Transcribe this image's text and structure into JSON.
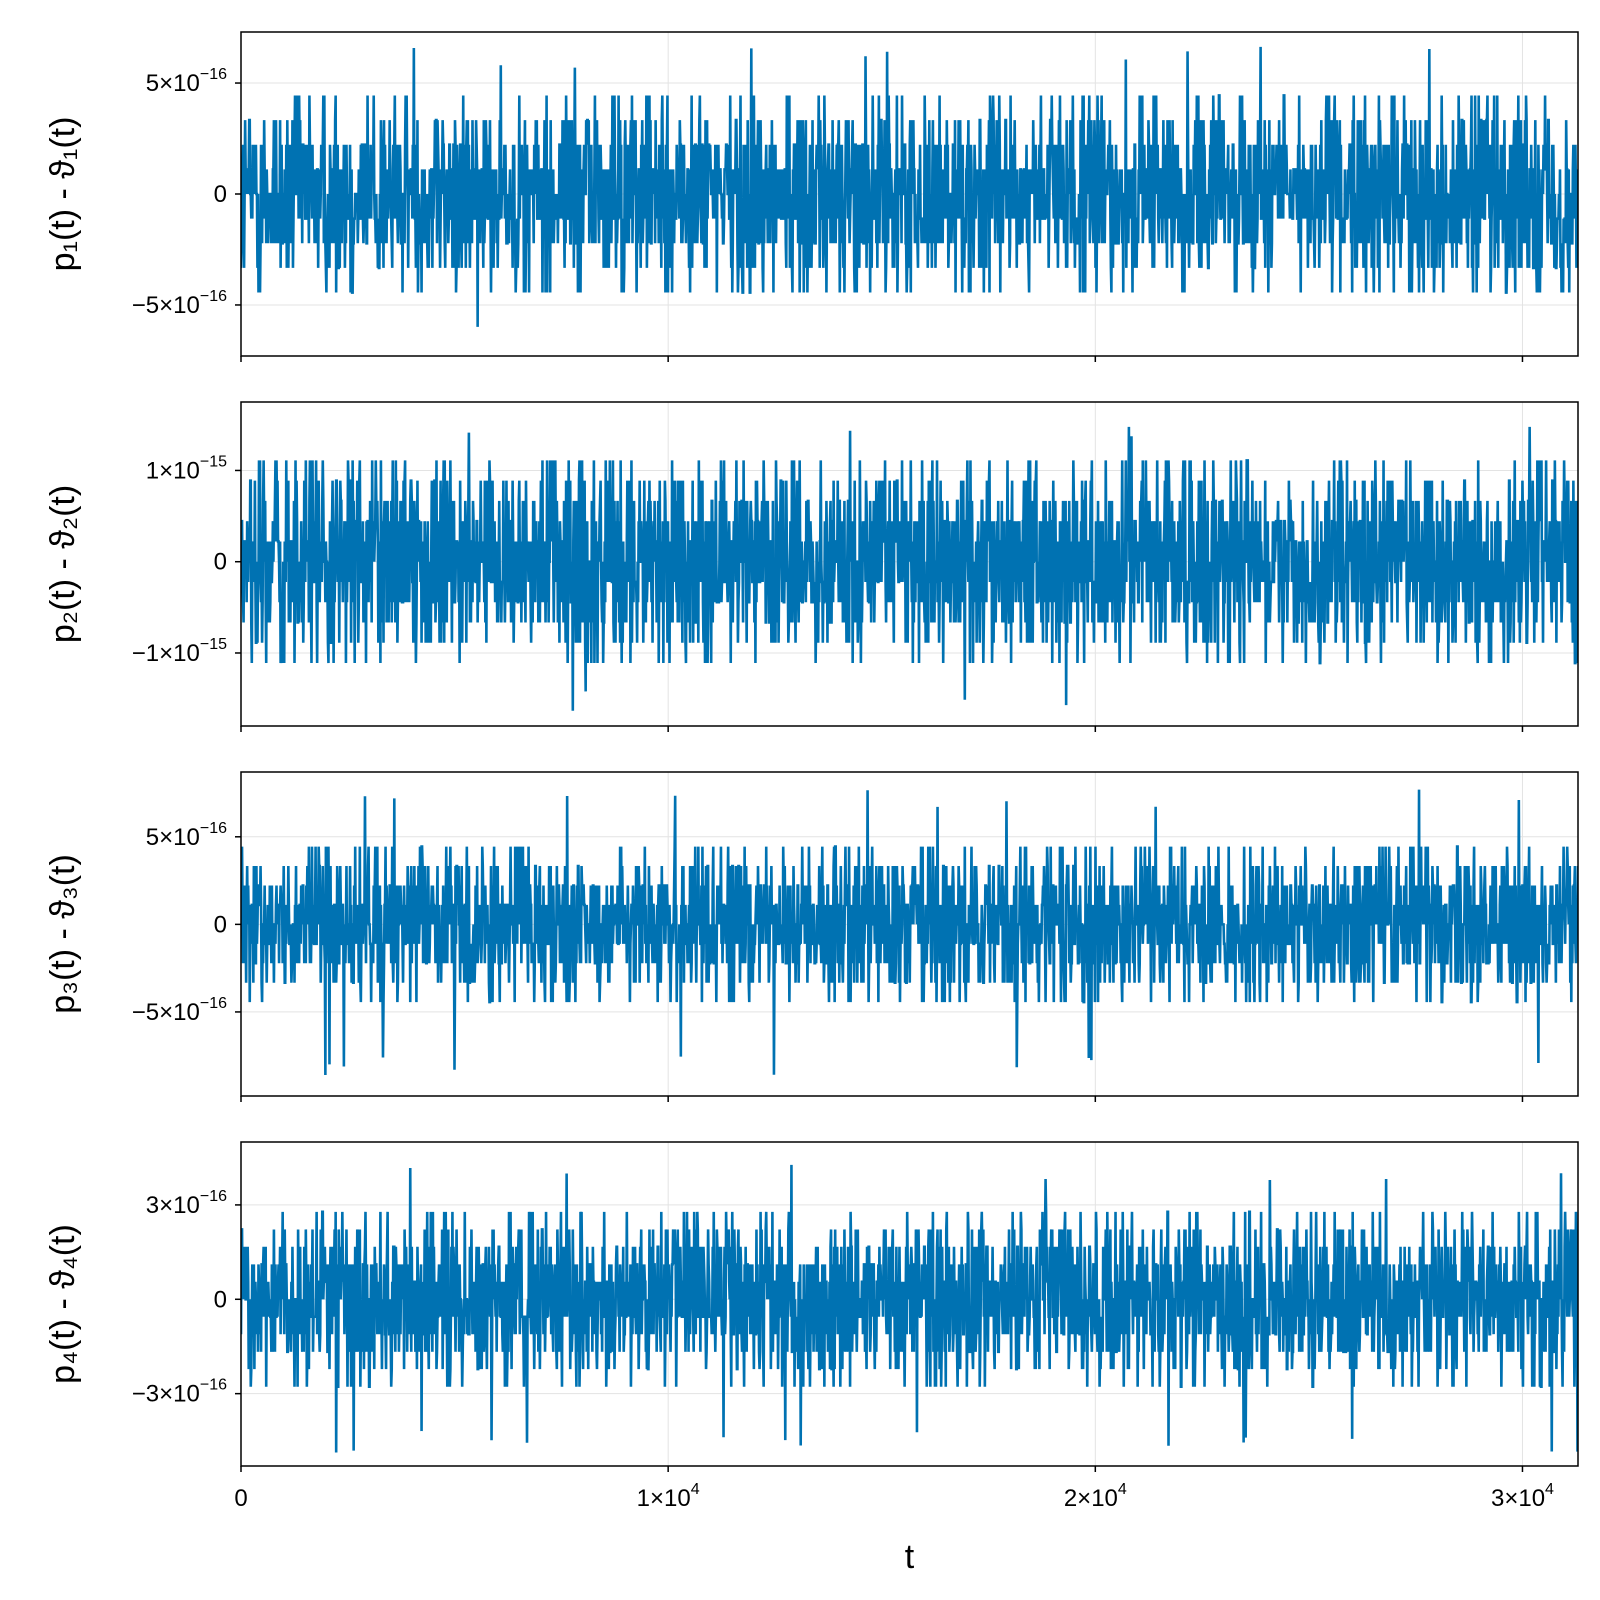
{
  "chart_data": {
    "type": "line",
    "xlabel": "t",
    "x_range": [
      0,
      31300
    ],
    "x_ticks": [
      {
        "value": 0,
        "label": "0"
      },
      {
        "value": 10000,
        "label": "1×10",
        "exp": "4"
      },
      {
        "value": 20000,
        "label": "2×10",
        "exp": "4"
      },
      {
        "value": 30000,
        "label": "3×10",
        "exp": "4"
      }
    ],
    "grid": true,
    "series_color": "#0072b2",
    "panels": [
      {
        "ylabel": "p₁(t) - ϑ₁(t)",
        "ylim": [
          -7.3e-16,
          7.3e-16
        ],
        "y_ticks": [
          {
            "value": 5e-16,
            "label": "5×10",
            "exp": "−16"
          },
          {
            "value": 0,
            "label": "0",
            "exp": ""
          },
          {
            "value": -5e-16,
            "label": "−5×10",
            "exp": "−16"
          }
        ],
        "levels": [
          -4.44e-16,
          -3.33e-16,
          -2.22e-16,
          -1.11e-16,
          0,
          1.11e-16,
          2.22e-16,
          3.33e-16,
          4.44e-16
        ],
        "max": 6.66e-16,
        "min": -6.66e-16
      },
      {
        "ylabel": "p₂(t) - ϑ₂(t)",
        "ylim": [
          -1.8e-15,
          1.75e-15
        ],
        "y_ticks": [
          {
            "value": 1e-15,
            "label": "1×10",
            "exp": "−15"
          },
          {
            "value": 0,
            "label": "0",
            "exp": ""
          },
          {
            "value": -1e-15,
            "label": "−1×10",
            "exp": "−15"
          }
        ],
        "levels": [
          -1.11e-15,
          -8.88e-16,
          -6.66e-16,
          -4.44e-16,
          -2.22e-16,
          0,
          2.22e-16,
          4.44e-16,
          6.66e-16,
          8.88e-16,
          1.11e-15
        ],
        "max": 1.55e-15,
        "min": -1.65e-15
      },
      {
        "ylabel": "p₃(t) - ϑ₃(t)",
        "ylim": [
          -9.8e-16,
          8.7e-16
        ],
        "y_ticks": [
          {
            "value": 5e-16,
            "label": "5×10",
            "exp": "−16"
          },
          {
            "value": 0,
            "label": "0",
            "exp": ""
          },
          {
            "value": -5e-16,
            "label": "−5×10",
            "exp": "−16"
          }
        ],
        "levels": [
          -4.44e-16,
          -3.33e-16,
          -2.22e-16,
          -1.11e-16,
          0,
          1.11e-16,
          2.22e-16,
          3.33e-16,
          4.44e-16
        ],
        "max": 7.77e-16,
        "min": -8.88e-16
      },
      {
        "ylabel": "p₄(t) - ϑ₄(t)",
        "ylim": [
          -5.3e-16,
          5e-16
        ],
        "y_ticks": [
          {
            "value": 3e-16,
            "label": "3×10",
            "exp": "−16"
          },
          {
            "value": 0,
            "label": "0",
            "exp": ""
          },
          {
            "value": -3e-16,
            "label": "−3×10",
            "exp": "−16"
          }
        ],
        "levels": [
          -2.78e-16,
          -2.22e-16,
          -1.67e-16,
          -1.11e-16,
          -5.55e-17,
          0,
          5.55e-17,
          1.11e-16,
          1.67e-16,
          2.22e-16,
          2.78e-16
        ],
        "max": 4.44e-16,
        "min": -4.89e-16
      }
    ]
  }
}
